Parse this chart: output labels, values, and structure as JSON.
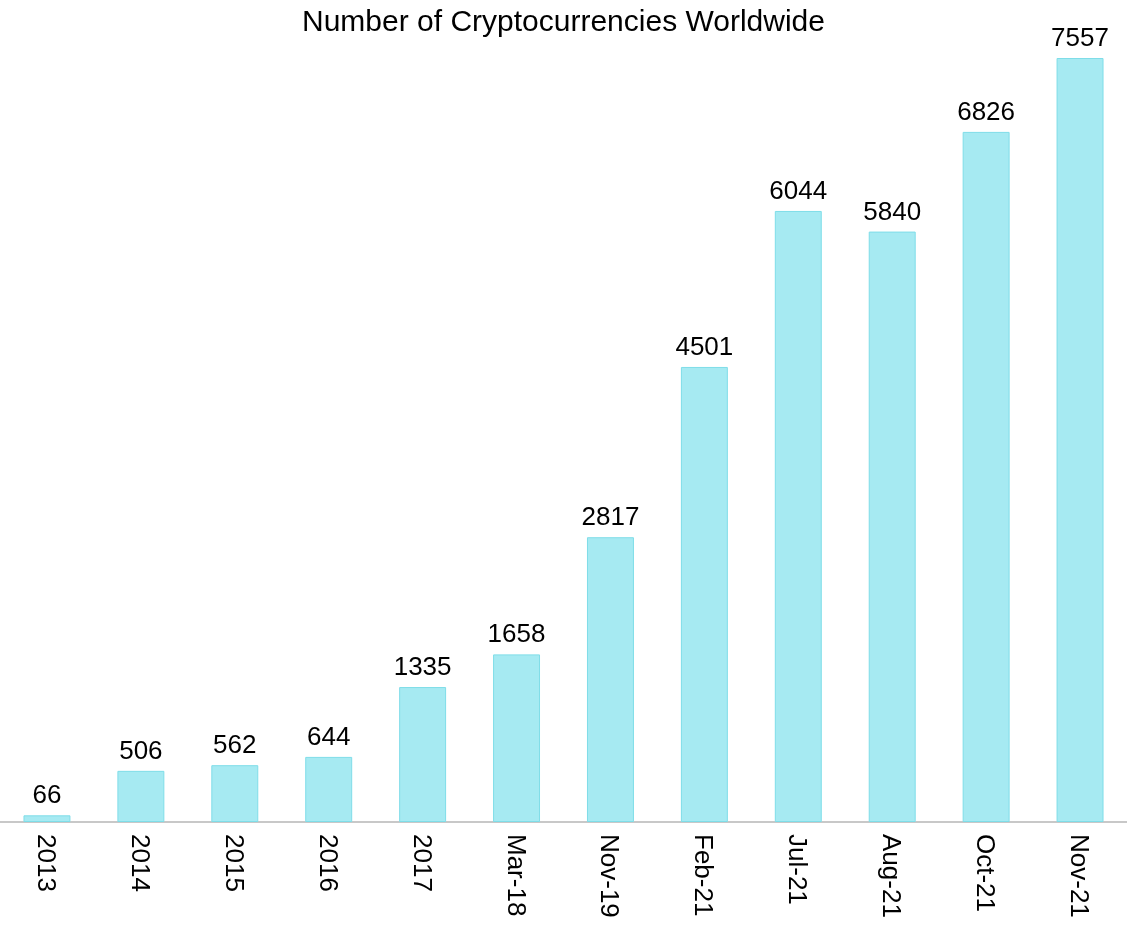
{
  "chart_data": {
    "type": "bar",
    "title": "Number of Cryptocurrencies Worldwide",
    "categories": [
      "2013",
      "2014",
      "2015",
      "2016",
      "2017",
      "Mar-18",
      "Nov-19",
      "Feb-21",
      "Jul-21",
      "Aug-21",
      "Oct-21",
      "Nov-21"
    ],
    "values": [
      66,
      506,
      562,
      644,
      1335,
      1658,
      2817,
      4501,
      6044,
      5840,
      6826,
      7557
    ],
    "color": "#a6eaf2",
    "data_labels": true
  }
}
